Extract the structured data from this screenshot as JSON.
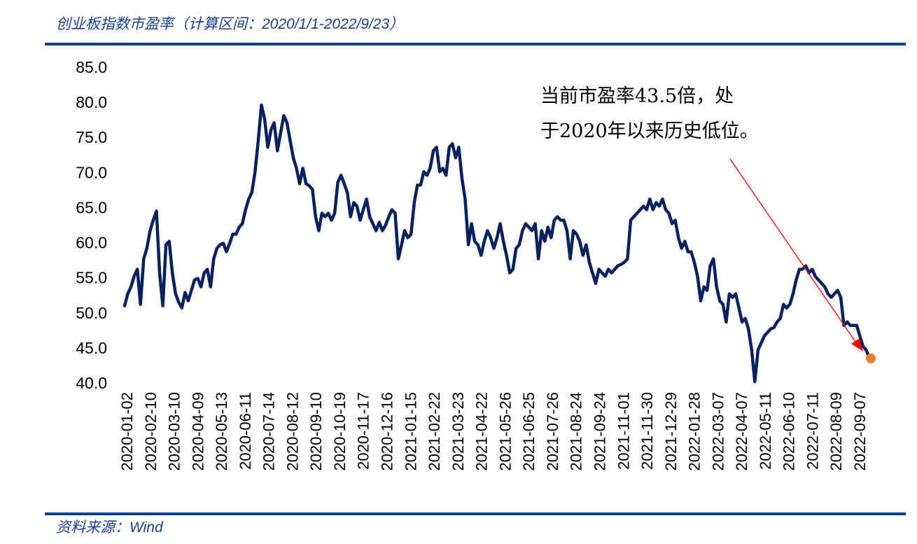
{
  "title": "创业板指数市盈率（计算区间：2020/1/1-2022/9/23）",
  "source": "资料来源：Wind",
  "colors": {
    "line": "#06215f",
    "rule": "#0a3f98",
    "arrow": "#ff0000",
    "marker": "#ed7d31",
    "title": "#1a3f95"
  },
  "chart_data": {
    "type": "line",
    "title": "创业板指数市盈率（计算区间：2020/1/1-2022/9/23）",
    "xlabel": "",
    "ylabel": "",
    "ylim": [
      40,
      85
    ],
    "yticks": [
      "40.0",
      "45.0",
      "50.0",
      "55.0",
      "60.0",
      "65.0",
      "70.0",
      "75.0",
      "80.0",
      "85.0"
    ],
    "grid": false,
    "x_tick_labels": [
      "2020-01-02",
      "2020-02-10",
      "2020-03-10",
      "2020-04-09",
      "2020-05-13",
      "2020-06-11",
      "2020-07-14",
      "2020-08-12",
      "2020-09-10",
      "2020-10-19",
      "2020-11-17",
      "2020-12-16",
      "2021-01-15",
      "2021-02-22",
      "2021-03-23",
      "2021-04-22",
      "2021-05-26",
      "2021-06-25",
      "2021-07-26",
      "2021-08-24",
      "2021-09-24",
      "2021-11-01",
      "2021-11-30",
      "2021-12-29",
      "2022-01-28",
      "2022-03-07",
      "2022-04-07",
      "2022-05-11",
      "2022-06-10",
      "2022-07-11",
      "2022-08-09",
      "2022-09-07"
    ],
    "series": [
      {
        "name": "创业板指数市盈率",
        "values": [
          51,
          52.7,
          53.7,
          55.2,
          56.2,
          51.2,
          57.7,
          59.2,
          61.7,
          63.2,
          64.5,
          55.7,
          51,
          59.7,
          60.2,
          55.7,
          52.7,
          51.5,
          50.7,
          52.9,
          51.7,
          53.2,
          54.7,
          54.9,
          53.7,
          55.7,
          56.2,
          53.7,
          57.7,
          59.2,
          59.7,
          59.9,
          58.7,
          59.9,
          61.2,
          61.2,
          62.2,
          62.7,
          64.7,
          66.2,
          67.2,
          70.1,
          74.6,
          79.6,
          77.6,
          73.6,
          76.1,
          77.1,
          73.1,
          75.6,
          78.1,
          77.1,
          74.6,
          72.1,
          70.6,
          68.4,
          70.6,
          68.4,
          68.1,
          67.6,
          63.7,
          61.7,
          64.2,
          63.7,
          64.2,
          63.2,
          64.2,
          68.6,
          69.6,
          68.4,
          67.1,
          63.7,
          65.7,
          65.2,
          63.2,
          64.7,
          66.2,
          63.7,
          62.7,
          61.7,
          62.9,
          61.7,
          62.5,
          63.7,
          64.7,
          64.2,
          57.7,
          59.7,
          61.7,
          60.7,
          61.2,
          65.7,
          68.2,
          68.2,
          70.1,
          69.6,
          70.6,
          73.1,
          73.6,
          70.1,
          70.6,
          69.6,
          73.6,
          74.1,
          72.1,
          73.6,
          69.1,
          66.2,
          59.7,
          62.7,
          60.2,
          59.7,
          58.2,
          60.2,
          61.7,
          60.7,
          59.2,
          60.7,
          62.7,
          60.2,
          58.2,
          55.7,
          56.2,
          59.2,
          59.7,
          61.7,
          62.7,
          62.2,
          61.7,
          62.7,
          57.7,
          61.7,
          60.2,
          62.2,
          60.7,
          63.2,
          63.7,
          63.2,
          63.2,
          61.7,
          57.7,
          61.7,
          61.2,
          60.2,
          58.2,
          59.7,
          57.2,
          55.7,
          54.2,
          56.2,
          55.7,
          55.2,
          56.2,
          55.7,
          56.2,
          56.7,
          56.9,
          57.2,
          57.7,
          63.2,
          63.7,
          64.2,
          64.7,
          65.2,
          64.7,
          66.2,
          64.7,
          65.7,
          65.2,
          66.2,
          64.7,
          64.2,
          62.7,
          63.2,
          60.7,
          59.2,
          60.2,
          58.7,
          58.7,
          57.2,
          55.2,
          51.7,
          53.7,
          53.2,
          56.7,
          57.7,
          53.7,
          51.7,
          51.2,
          48.7,
          52.7,
          52.2,
          52.7,
          50.7,
          48.7,
          49.2,
          47.7,
          44.7,
          40.2,
          44.7,
          45.7,
          46.7,
          47.2,
          47.7,
          47.9,
          48.7,
          49.2,
          51.2,
          50.7,
          51.2,
          52.7,
          54.7,
          56.2,
          56.2,
          56.7,
          55.7,
          56.2,
          55.2,
          54.7,
          54.2,
          53.7,
          52.7,
          52.2,
          52.7,
          53.2,
          52.2,
          48.2,
          48.7,
          48.2,
          48.2,
          48.2,
          46.7,
          45.2,
          44.7,
          43.5
        ]
      }
    ],
    "last_point": {
      "date": "2022-09-23",
      "value": 43.5
    },
    "annotation": {
      "lines": [
        "当前市盈率43.5倍，处",
        "于2020年以来历史低位。"
      ]
    }
  }
}
